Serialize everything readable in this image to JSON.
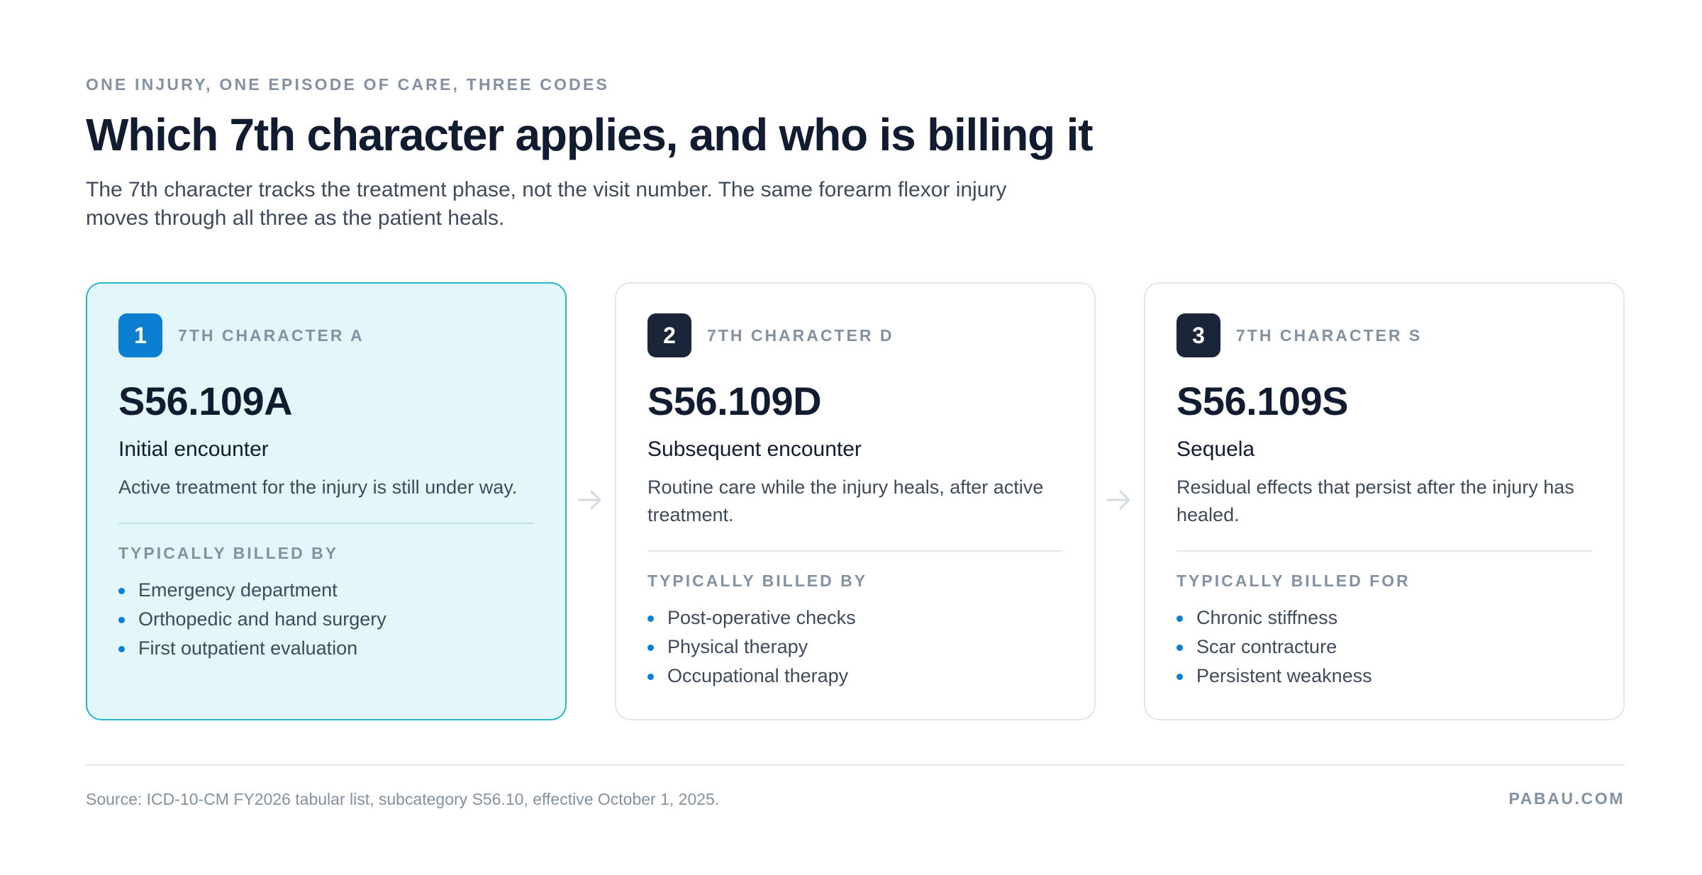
{
  "header": {
    "eyebrow": "ONE INJURY, ONE EPISODE OF CARE, THREE CODES",
    "title": "Which 7th character applies, and who is billing it",
    "subtitle": "The 7th character tracks the treatment phase, not the visit number. The same forearm flexor injury moves through all three as the patient heals."
  },
  "cards": [
    {
      "number": "1",
      "char_label": "7TH CHARACTER A",
      "code": "S56.109A",
      "phase": "Initial encounter",
      "description": "Active treatment for the injury is still under way.",
      "billed_label": "TYPICALLY BILLED BY",
      "items": [
        "Emergency department",
        "Orthopedic and hand surgery",
        "First outpatient evaluation"
      ]
    },
    {
      "number": "2",
      "char_label": "7TH CHARACTER D",
      "code": "S56.109D",
      "phase": "Subsequent encounter",
      "description": "Routine care while the injury heals, after active treatment.",
      "billed_label": "TYPICALLY BILLED BY",
      "items": [
        "Post-operative checks",
        "Physical therapy",
        "Occupational therapy"
      ]
    },
    {
      "number": "3",
      "char_label": "7TH CHARACTER S",
      "code": "S56.109S",
      "phase": "Sequela",
      "description": "Residual effects that persist after the injury has healed.",
      "billed_label": "TYPICALLY BILLED FOR",
      "items": [
        "Chronic stiffness",
        "Scar contracture",
        "Persistent weakness"
      ]
    }
  ],
  "footer": {
    "source": "Source: ICD-10-CM FY2026 tabular list, subcategory S56.10, effective October 1, 2025.",
    "brand": "PABAU.COM"
  },
  "colors": {
    "accent": "#0c7fd3",
    "active_border": "#27b6c9",
    "active_bg": "#e3f6fa",
    "badge_dark": "#1a2539"
  },
  "icons": {
    "connector": "arrow-right-icon",
    "bullet": "bullet-dot-icon"
  }
}
